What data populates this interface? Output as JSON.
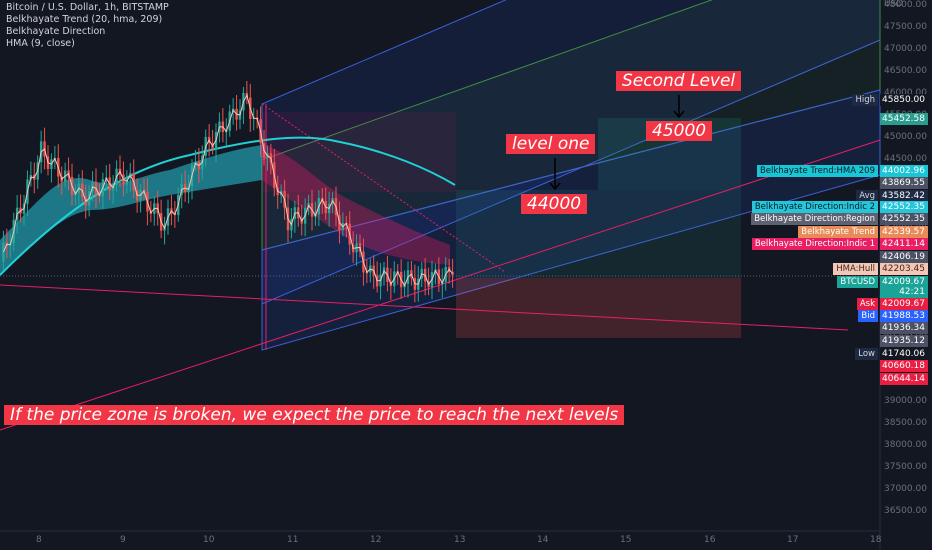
{
  "header": {
    "title": "Bitcoin / U.S. Dollar, 1h, BITSTAMP",
    "indicator1": "Belkhayate Trend (20, hma, 209)",
    "indicator2": "Belkhayate Direction",
    "indicator3": "HMA (9, close)"
  },
  "annotations": {
    "second_level": "Second Level",
    "level_one": "level one",
    "target_45000": "45000",
    "target_44000": "44000",
    "bottom_note": "If the price zone is broken, we expect the price to reach the next levels"
  },
  "price_axis": {
    "currency": "USD",
    "ticks": [
      "48000.00",
      "47500.00",
      "47000.00",
      "46500.00",
      "46000.00",
      "45500.00",
      "45000.00",
      "44500.00",
      "44000.00",
      "43500.00",
      "43000.00",
      "42500.00",
      "42000.00",
      "41500.00",
      "41000.00",
      "40500.00",
      "40000.00",
      "39500.00",
      "39000.00",
      "38500.00",
      "38000.00",
      "37500.00",
      "37000.00",
      "36500.00"
    ],
    "labels": [
      {
        "name": "High",
        "value": "45850.00",
        "color": "#131722",
        "name_bg": "#1e2a44",
        "name_color": "#d1d4dc"
      },
      {
        "name": "",
        "value": "45452.58",
        "color": "#2a9d8f"
      },
      {
        "name": "Belkhayate Trend:HMA 209",
        "value": "44002.96",
        "color": "#18c6d6",
        "name_bg": "#18c6d6",
        "name_color": "#0b1a22"
      },
      {
        "name": "",
        "value": "43869.55",
        "color": "#4c5263"
      },
      {
        "name": "Avg",
        "value": "43582.42",
        "color": "#1e2a44",
        "name_bg": "#1e2a44",
        "name_color": "#d1d4dc"
      },
      {
        "name": "Belkhayate Direction:Indic 2",
        "value": "42552.35",
        "color": "#26c6da",
        "name_bg": "#26c6da",
        "name_color": "#0b1a22"
      },
      {
        "name": "Belkhayate Direction:Region",
        "value": "42552.35",
        "color": "#4c5263",
        "name_bg": "#5d6170",
        "name_color": "#ffffff"
      },
      {
        "name": "Belkhayate Trend",
        "value": "42539.57",
        "color": "#e98b57",
        "name_bg": "#e98b57",
        "name_color": "#ffffff"
      },
      {
        "name": "Belkhayate Direction:Indic 1",
        "value": "42411.14",
        "color": "#e91e63",
        "name_bg": "#e91e63",
        "name_color": "#ffffff"
      },
      {
        "name": "",
        "value": "42406.19",
        "color": "#4c5263"
      },
      {
        "name": "HMA:Hull",
        "value": "42203.45",
        "color": "#f5c6b5",
        "name_bg": "#f5c6b5",
        "name_color": "#3a2a22",
        "value_color": "#3a2a22"
      },
      {
        "name": "BTCUSD",
        "value": "42009.67",
        "color": "#1aa397",
        "name_bg": "#1aa397",
        "name_color": "#ffffff"
      },
      {
        "name": "",
        "value": "42:21",
        "color": "#1aa397"
      },
      {
        "name": "Ask",
        "value": "42009.67",
        "color": "#e91e43",
        "name_bg": "#e91e43",
        "name_color": "#ffffff"
      },
      {
        "name": "Bid",
        "value": "41988.53",
        "color": "#2962ff",
        "name_bg": "#2962ff",
        "name_color": "#ffffff"
      },
      {
        "name": "",
        "value": "41936.34",
        "color": "#4c5263"
      },
      {
        "name": "",
        "value": "41935.12",
        "color": "#4c5263"
      },
      {
        "name": "Low",
        "value": "41740.06",
        "color": "#131722",
        "name_bg": "#1e2a44",
        "name_color": "#d1d4dc"
      },
      {
        "name": "",
        "value": "40660.18",
        "color": "#e91e43"
      },
      {
        "name": "",
        "value": "40644.14",
        "color": "#e91e43"
      }
    ]
  },
  "time_axis": {
    "ticks": [
      "8",
      "9",
      "10",
      "11",
      "12",
      "13",
      "14",
      "15",
      "16",
      "17",
      "18"
    ]
  },
  "colors": {
    "background": "#131722",
    "up": "#26a69a",
    "down": "#ef5350",
    "cyan": "#1fd1d6",
    "annotation": "#f23645",
    "channel_blue": "#2962ff",
    "channel_green": "#4caf50",
    "channel_red": "#e91e63"
  },
  "chart_data": {
    "type": "line",
    "title": "Bitcoin / U.S. Dollar, 1h, BITSTAMP",
    "xlabel": "",
    "ylabel": "USD",
    "ylim": [
      36500,
      48000
    ],
    "x_ticks": [
      "8",
      "9",
      "10",
      "11",
      "12",
      "13",
      "14",
      "15",
      "16",
      "17",
      "18"
    ],
    "grid": false,
    "series": [
      {
        "name": "BTCUSD",
        "x": [
          "Jan 8 00:00",
          "Jan 8 12:00",
          "Jan 9 00:00",
          "Jan 9 12:00",
          "Jan 10 00:00",
          "Jan 10 12:00",
          "Jan 11 00:00",
          "Jan 11 06:00",
          "Jan 11 12:00",
          "Jan 12 00:00",
          "Jan 12 12:00",
          "Jan 13 00:00"
        ],
        "values": [
          42300,
          44700,
          43700,
          44200,
          43100,
          44800,
          45850,
          43200,
          43600,
          42000,
          41900,
          42010
        ]
      },
      {
        "name": "Belkhayate Trend:HMA 209",
        "x": [
          "Jan 8 00:00",
          "Jan 9 00:00",
          "Jan 10 00:00",
          "Jan 11 00:00",
          "Jan 12 00:00",
          "Jan 13 00:00"
        ],
        "values": [
          42200,
          43800,
          44700,
          45100,
          44900,
          44100
        ]
      }
    ],
    "annotations": [
      {
        "text": "Second Level",
        "value": 45000
      },
      {
        "text": "level one",
        "value": 44000
      },
      {
        "text": "45000",
        "value": 45000
      },
      {
        "text": "44000",
        "value": 44000
      }
    ]
  }
}
